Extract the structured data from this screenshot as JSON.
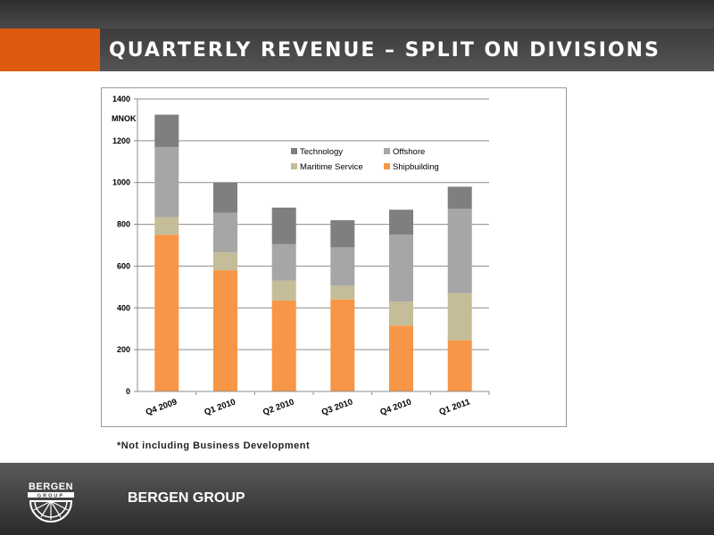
{
  "slide": {
    "title": "QUARTERLY REVENUE – SPLIT ON DIVISIONS",
    "footnote": "*Not including Business Development",
    "brand": "BERGEN GROUP",
    "logo_text_top": "BERGEN",
    "logo_text_bottom": "GROUP"
  },
  "colors": {
    "orange_accent": "#de5a10",
    "shipbuilding": "#f79646",
    "maritime_service": "#c4bd97",
    "offshore": "#a6a6a6",
    "technology": "#7f7f7f"
  },
  "chart_data": {
    "type": "bar",
    "stacked": true,
    "ylabel": "MNOK",
    "ylim": [
      0,
      1400
    ],
    "yticks": [
      0,
      200,
      400,
      600,
      800,
      1000,
      1200,
      1400
    ],
    "grid": true,
    "legend_position": "top-right",
    "categories": [
      "Q4 2009",
      "Q1 2010",
      "Q2 2010",
      "Q3 2010",
      "Q4 2010",
      "Q1 2011"
    ],
    "series": [
      {
        "name": "Shipbuilding",
        "color": "#f79646",
        "values": [
          750,
          580,
          435,
          440,
          315,
          245
        ]
      },
      {
        "name": "Maritime Service",
        "color": "#c4bd97",
        "values": [
          85,
          85,
          95,
          65,
          115,
          225
        ]
      },
      {
        "name": "Offshore",
        "color": "#a6a6a6",
        "values": [
          335,
          190,
          175,
          185,
          320,
          405
        ]
      },
      {
        "name": "Technology",
        "color": "#7f7f7f",
        "values": [
          155,
          145,
          175,
          130,
          120,
          105
        ]
      }
    ],
    "legend_order": [
      "Technology",
      "Offshore",
      "Maritime Service",
      "Shipbuilding"
    ]
  }
}
